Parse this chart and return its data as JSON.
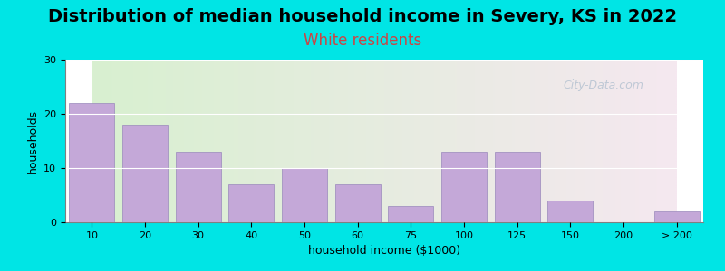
{
  "title": "Distribution of median household income in Severy, KS in 2022",
  "subtitle": "White residents",
  "xlabel": "household income ($1000)",
  "ylabel": "households",
  "background_outer": "#00e5e5",
  "background_inner_left": "#d8f0d0",
  "background_inner_right": "#f5e8f0",
  "bar_color": "#c4a8d8",
  "bar_edge_color": "#9988bb",
  "categories": [
    "10",
    "20",
    "30",
    "40",
    "50",
    "60",
    "75",
    "100",
    "125",
    "150",
    "200",
    "> 200"
  ],
  "values": [
    22,
    18,
    13,
    7,
    10,
    7,
    3,
    13,
    13,
    4,
    0,
    2
  ],
  "ylim": [
    0,
    30
  ],
  "yticks": [
    0,
    10,
    20,
    30
  ],
  "title_fontsize": 14,
  "subtitle_fontsize": 12,
  "subtitle_color": "#cc4444",
  "watermark": "City-Data.com"
}
